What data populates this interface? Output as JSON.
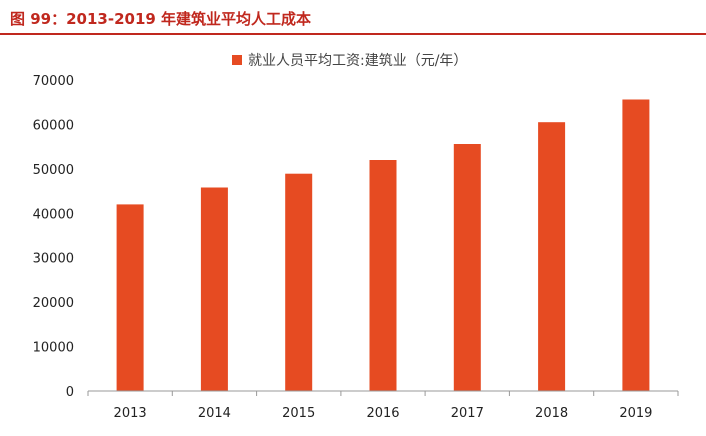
{
  "figure_title": "图 99：2013-2019 年建筑业平均人工成本",
  "colors": {
    "accent": "#c0281e",
    "bar": "#e64b22",
    "axis": "#999999"
  },
  "chart_data": {
    "type": "bar",
    "categories": [
      "2013",
      "2014",
      "2015",
      "2016",
      "2017",
      "2018",
      "2019"
    ],
    "series": [
      {
        "name": "就业人员平均工资:建筑业（元/年）",
        "values": [
          42000,
          45800,
          48900,
          52000,
          55600,
          60500,
          65600
        ]
      }
    ],
    "title": "",
    "xlabel": "",
    "ylabel": "",
    "ylim": [
      0,
      70000
    ],
    "yticks": [
      "0",
      "10000",
      "20000",
      "30000",
      "40000",
      "50000",
      "60000",
      "70000"
    ],
    "legend_position": "top-center",
    "grid": false
  }
}
